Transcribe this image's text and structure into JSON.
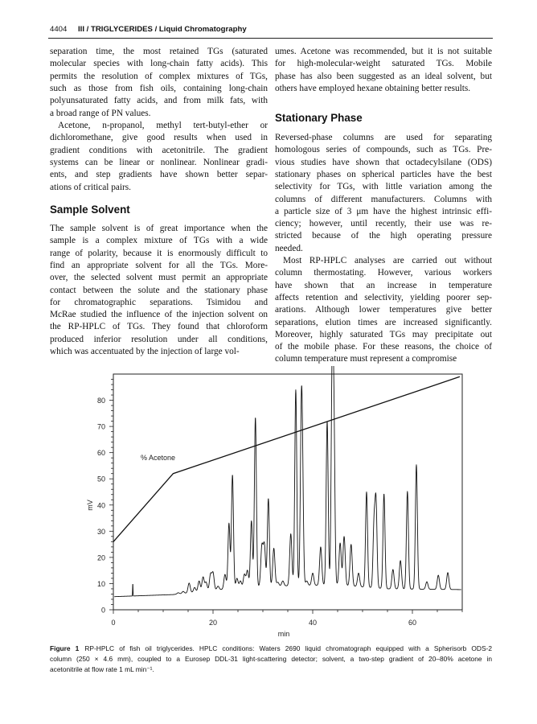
{
  "header": {
    "page_number": "4404",
    "running_title": "III / TRIGLYCERIDES / Liquid Chromatography"
  },
  "left_column": {
    "para1": [
      "separation time, the most retained TGs (saturated",
      "molecular species with long-chain fatty acids). This",
      "permits the resolution of complex mixtures of TGs,",
      "such as those from fish oils, containing long-chain",
      "polyunsaturated fatty acids, and from milk fats, with",
      "a broad range of PN values."
    ],
    "para2": [
      "Acetone, n-propanol, methyl tert-butyl-ether or",
      "dichloromethane, give good results when used in",
      "gradient conditions with acetonitrile. The gradient",
      "systems can be linear or nonlinear. Nonlinear gradi-",
      "ents, and step gradients have shown better separ-",
      "ations of critical pairs."
    ],
    "heading": "Sample Solvent",
    "para3": [
      "The sample solvent is of great importance when the",
      "sample is a complex mixture of TGs with a wide",
      "range of polarity, because it is enormously difficult to",
      "find an appropriate solvent for all the TGs. More-",
      "over, the selected solvent must permit an appropriate",
      "contact between the solute and the stationary phase",
      "for chromatographic separations. Tsimidou and",
      "McRae studied the influence of the injection solvent on",
      "the RP-HPLC of TGs. They found that chloroform",
      "produced inferior resolution under all conditions,",
      "which was accentuated by the injection of large vol-"
    ]
  },
  "right_column": {
    "para1": [
      "umes. Acetone was recommended, but it is not suitable",
      "for high-molecular-weight saturated TGs. Mobile",
      "phase has also been suggested as an ideal solvent, but",
      "others have employed hexane obtaining better results."
    ],
    "heading": "Stationary Phase",
    "para2": [
      "Reversed-phase columns are used for separating",
      "homologous series of compounds, such as TGs. Pre-",
      "vious studies have shown that octadecylsilane (ODS)",
      "stationary phases on spherical particles have the best",
      "selectivity for TGs, with little variation among the",
      "columns of different manufacturers. Columns with",
      "a particle size of 3 μm have the highest intrinsic effi-",
      "ciency; however, until recently, their use was re-",
      "stricted because of the high operating pressure",
      "needed."
    ],
    "para3": [
      "Most RP-HPLC analyses are carried out without",
      "column thermostating. However, various workers",
      "have shown that an increase in temperature",
      "affects retention and selectivity, yielding poorer sep-",
      "arations. Although lower temperatures give better",
      "separations, elution times are increased significantly.",
      "Moreover, highly saturated TGs may precipitate out",
      "of the mobile phase. For these reasons, the choice of",
      "column temperature must represent a compromise"
    ]
  },
  "chart_data": {
    "type": "line",
    "xlabel": "min",
    "ylabel": "mV",
    "xlim": [
      0,
      70
    ],
    "ylim": [
      0,
      90
    ],
    "x_ticks": [
      0,
      20,
      40,
      60
    ],
    "y_ticks": [
      0,
      10,
      20,
      30,
      40,
      50,
      60,
      70,
      80
    ],
    "grid": false,
    "line_color": "#111111",
    "annotation": "% Acetone",
    "gradient_line": [
      [
        0,
        26
      ],
      [
        12,
        52
      ],
      [
        69.5,
        89
      ]
    ],
    "baseline": [
      [
        0,
        5
      ],
      [
        12,
        5.8
      ],
      [
        20,
        7.5
      ],
      [
        30,
        9
      ],
      [
        45,
        9.5
      ],
      [
        55,
        8
      ],
      [
        70,
        7.7
      ]
    ],
    "peaks": [
      [
        3.9,
        10.3
      ],
      [
        13,
        6.5
      ],
      [
        14,
        7
      ],
      [
        15.2,
        10.2
      ],
      [
        16.3,
        8.5
      ],
      [
        17.2,
        11
      ],
      [
        18,
        12.5
      ],
      [
        18.6,
        10.5
      ],
      [
        19.5,
        13.5
      ],
      [
        20,
        14
      ],
      [
        21,
        9
      ],
      [
        22.4,
        13.5
      ],
      [
        23.2,
        33
      ],
      [
        23.9,
        51.5
      ],
      [
        24.8,
        12
      ],
      [
        25.5,
        11
      ],
      [
        26.3,
        13.5
      ],
      [
        26.9,
        15
      ],
      [
        27.7,
        34
      ],
      [
        28.5,
        73.5
      ],
      [
        29.8,
        24
      ],
      [
        30.3,
        24.5
      ],
      [
        31.1,
        42.5
      ],
      [
        32.2,
        23.5
      ],
      [
        33,
        10.5
      ],
      [
        34,
        11
      ],
      [
        35.6,
        29
      ],
      [
        36.6,
        84
      ],
      [
        37.7,
        65.5
      ],
      [
        37.95,
        44.5
      ],
      [
        38.8,
        11
      ],
      [
        40,
        14
      ],
      [
        41.6,
        24
      ],
      [
        42.9,
        72
      ],
      [
        43.9,
        88.5
      ],
      [
        44.25,
        69
      ],
      [
        45.5,
        25.5
      ],
      [
        46.3,
        28
      ],
      [
        47.7,
        25
      ],
      [
        49.2,
        14
      ],
      [
        50.8,
        45
      ],
      [
        52.3,
        32
      ],
      [
        52.7,
        40.5
      ],
      [
        54.3,
        44.3
      ],
      [
        56.1,
        15.4
      ],
      [
        57.6,
        18.8
      ],
      [
        59,
        45.2
      ],
      [
        60.8,
        55.4
      ],
      [
        62.9,
        10.7
      ],
      [
        65.2,
        13.2
      ],
      [
        67.1,
        14.2
      ]
    ]
  },
  "caption": {
    "label": "Figure 1",
    "lines": [
      "RP-HPLC of fish oil triglycerides. HPLC conditions: Waters 2690 liquid chromatograph equipped with a Spherisorb ODS-2",
      "column (250 × 4.6 mm), coupled to a Eurosep DDL-31 light-scattering detector; solvent, a two-step gradient of 20–80% acetone in",
      "acetonitrile at flow rate 1 mL min⁻¹."
    ]
  }
}
